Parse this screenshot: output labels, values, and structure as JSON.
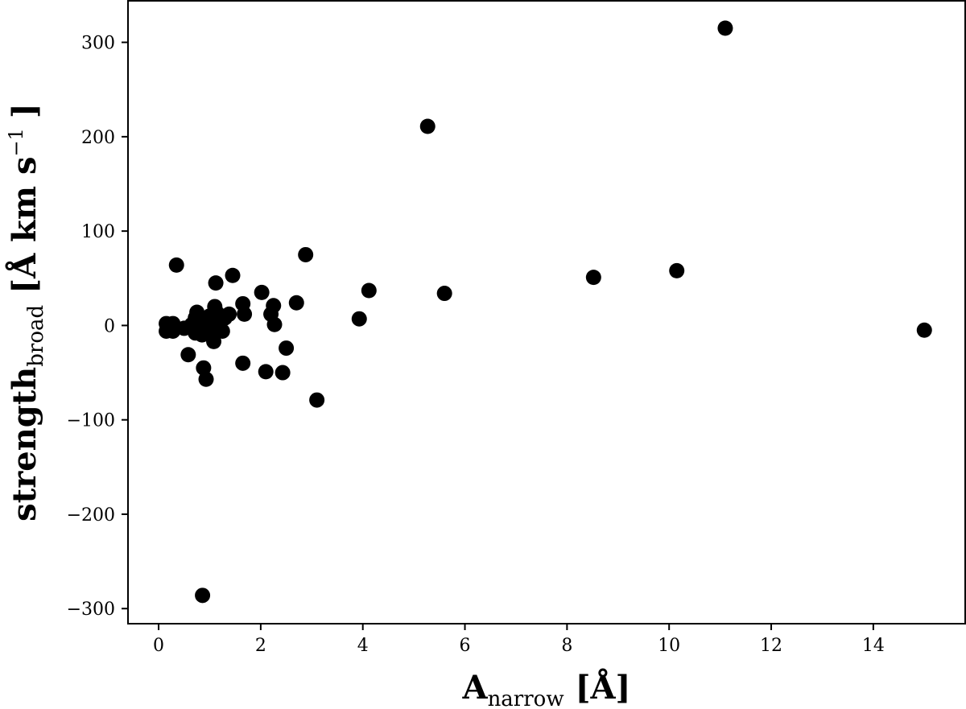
{
  "chart_data": {
    "type": "scatter",
    "xlabel": {
      "main": "A",
      "sub": "narrow",
      "unit": "[Å]"
    },
    "ylabel": {
      "main": "strength",
      "sub": "broad",
      "unit_pre": "[Å km s",
      "unit_sup": "−1",
      "unit_post": "]"
    },
    "xlim": [
      -0.6,
      15.8
    ],
    "ylim": [
      -316,
      344
    ],
    "xticks": [
      0,
      2,
      4,
      6,
      8,
      10,
      12,
      14
    ],
    "xtick_labels": [
      "0",
      "2",
      "4",
      "6",
      "8",
      "10",
      "12",
      "14"
    ],
    "yticks": [
      -300,
      -200,
      -100,
      0,
      100,
      200,
      300
    ],
    "ytick_labels": [
      "−300",
      "−200",
      "−100",
      "0",
      "100",
      "200",
      "300"
    ],
    "grid": false,
    "marker_color": "#000000",
    "points": [
      {
        "x": 11.1,
        "y": 315
      },
      {
        "x": 5.27,
        "y": 211
      },
      {
        "x": 2.88,
        "y": 75
      },
      {
        "x": 0.35,
        "y": 64
      },
      {
        "x": 1.45,
        "y": 53
      },
      {
        "x": 1.12,
        "y": 45
      },
      {
        "x": 8.52,
        "y": 51
      },
      {
        "x": 10.15,
        "y": 58
      },
      {
        "x": 4.12,
        "y": 37
      },
      {
        "x": 5.6,
        "y": 34
      },
      {
        "x": 2.02,
        "y": 35
      },
      {
        "x": 2.7,
        "y": 24
      },
      {
        "x": 1.65,
        "y": 23
      },
      {
        "x": 2.25,
        "y": 21
      },
      {
        "x": 1.68,
        "y": 12
      },
      {
        "x": 2.2,
        "y": 12
      },
      {
        "x": 2.27,
        "y": 1
      },
      {
        "x": 3.93,
        "y": 7
      },
      {
        "x": 15.0,
        "y": -5
      },
      {
        "x": 0.15,
        "y": 2
      },
      {
        "x": 0.28,
        "y": 2
      },
      {
        "x": 0.15,
        "y": -6
      },
      {
        "x": 0.28,
        "y": -6
      },
      {
        "x": 0.5,
        "y": -3
      },
      {
        "x": 0.65,
        "y": 1
      },
      {
        "x": 0.72,
        "y": 8
      },
      {
        "x": 0.75,
        "y": 14
      },
      {
        "x": 0.8,
        "y": 3
      },
      {
        "x": 0.85,
        "y": -5
      },
      {
        "x": 0.9,
        "y": 7
      },
      {
        "x": 0.95,
        "y": -2
      },
      {
        "x": 1.0,
        "y": 10
      },
      {
        "x": 1.05,
        "y": 3
      },
      {
        "x": 1.1,
        "y": 20
      },
      {
        "x": 1.15,
        "y": 13
      },
      {
        "x": 1.2,
        "y": 2
      },
      {
        "x": 1.25,
        "y": -6
      },
      {
        "x": 1.3,
        "y": 8
      },
      {
        "x": 1.38,
        "y": 12
      },
      {
        "x": 0.72,
        "y": -8
      },
      {
        "x": 0.85,
        "y": -10
      },
      {
        "x": 1.0,
        "y": -5
      },
      {
        "x": 1.08,
        "y": -17
      },
      {
        "x": 1.15,
        "y": 6
      },
      {
        "x": 0.58,
        "y": -31
      },
      {
        "x": 0.88,
        "y": -45
      },
      {
        "x": 0.93,
        "y": -57
      },
      {
        "x": 1.65,
        "y": -40
      },
      {
        "x": 2.1,
        "y": -49
      },
      {
        "x": 2.43,
        "y": -50
      },
      {
        "x": 2.5,
        "y": -24
      },
      {
        "x": 3.1,
        "y": -79
      },
      {
        "x": 0.86,
        "y": -286
      }
    ]
  }
}
